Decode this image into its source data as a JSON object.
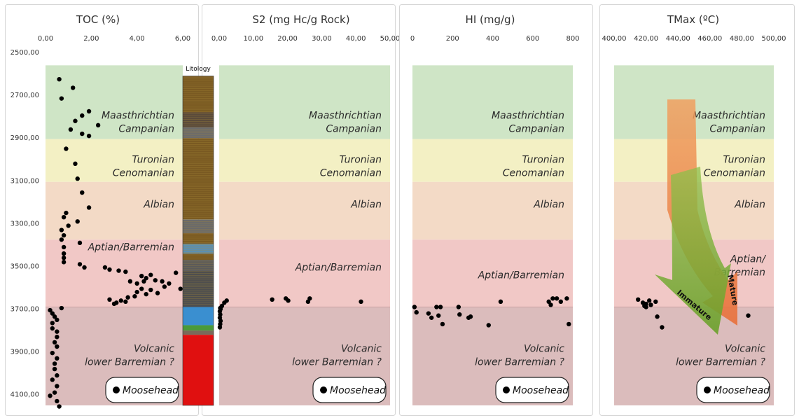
{
  "chart_data": {
    "type": "scatter",
    "depth_axis": {
      "range": [
        2500,
        4150
      ],
      "inverted": true,
      "ticks": [
        2500,
        2700,
        2900,
        3100,
        3300,
        3500,
        3700,
        3900,
        4100
      ],
      "tick_labels": [
        "2500,00",
        "2700,00",
        "2900,00",
        "3100,00",
        "3300,00",
        "3500,00",
        "3700,00",
        "3900,00",
        "4100,00"
      ]
    },
    "zones": [
      {
        "name_lines": [
          "Maasthrichtian",
          "Campanian"
        ],
        "top": 2560,
        "base": 2905,
        "color": "#cfe5c6"
      },
      {
        "name_lines": [
          "Turonian",
          "Cenomanian"
        ],
        "top": 2905,
        "base": 3105,
        "color": "#f3f0c4"
      },
      {
        "name_lines": [
          "Albian"
        ],
        "top": 3105,
        "base": 3375,
        "color": "#f3dac6"
      },
      {
        "name_lines": [
          "Aptian/Barremian"
        ],
        "top": 3375,
        "base": 3690,
        "color": "#f1c8c6"
      },
      {
        "name_lines": [
          "Volcanic",
          "lower Barremian ?"
        ],
        "top": 3690,
        "base": 4150,
        "color": "#dbbcbc"
      }
    ],
    "legend": "Moosehead",
    "lithology_label": "Litology",
    "arrow_labels": {
      "immature": "Immature",
      "mature": "Mature"
    },
    "panels": [
      {
        "title": "TOC (%)",
        "x_range": [
          0,
          6
        ],
        "x_ticks": [
          0,
          2,
          4,
          6
        ],
        "x_tick_labels": [
          "0,00",
          "2,00",
          "4,00",
          "6,00"
        ],
        "zone_label_lines": [
          [
            "Maasthrichtian",
            "Campanian"
          ],
          [
            "Turonian",
            "Cenomanian"
          ],
          [
            "Albian"
          ],
          [
            "Aptian/Barremian"
          ],
          [
            "Volcanic",
            "lower Barremian ?"
          ]
        ],
        "label_depths": [
          2810,
          3015,
          3225,
          3425,
          3900
        ],
        "points": [
          [
            0.6,
            2625
          ],
          [
            1.2,
            2665
          ],
          [
            0.7,
            2715
          ],
          [
            1.9,
            2775
          ],
          [
            1.6,
            2795
          ],
          [
            1.3,
            2820
          ],
          [
            2.3,
            2840
          ],
          [
            1.1,
            2860
          ],
          [
            1.6,
            2880
          ],
          [
            1.9,
            2890
          ],
          [
            0.9,
            2950
          ],
          [
            1.3,
            3020
          ],
          [
            1.4,
            3090
          ],
          [
            1.6,
            3155
          ],
          [
            1.9,
            3225
          ],
          [
            0.9,
            3250
          ],
          [
            0.8,
            3270
          ],
          [
            1.4,
            3290
          ],
          [
            1.0,
            3310
          ],
          [
            0.7,
            3330
          ],
          [
            0.8,
            3355
          ],
          [
            0.7,
            3375
          ],
          [
            1.5,
            3390
          ],
          [
            0.8,
            3410
          ],
          [
            0.8,
            3440
          ],
          [
            0.8,
            3460
          ],
          [
            0.8,
            3480
          ],
          [
            1.5,
            3490
          ],
          [
            1.7,
            3505
          ],
          [
            2.6,
            3505
          ],
          [
            2.8,
            3515
          ],
          [
            3.2,
            3520
          ],
          [
            3.5,
            3525
          ],
          [
            4.6,
            3540
          ],
          [
            5.7,
            3530
          ],
          [
            4.2,
            3545
          ],
          [
            4.4,
            3555
          ],
          [
            4.3,
            3570
          ],
          [
            4.8,
            3565
          ],
          [
            5.1,
            3570
          ],
          [
            3.7,
            3570
          ],
          [
            4.0,
            3580
          ],
          [
            5.4,
            3580
          ],
          [
            5.2,
            3595
          ],
          [
            4.2,
            3605
          ],
          [
            4.6,
            3610
          ],
          [
            5.9,
            3605
          ],
          [
            4.0,
            3620
          ],
          [
            4.4,
            3630
          ],
          [
            4.9,
            3625
          ],
          [
            3.9,
            3640
          ],
          [
            3.6,
            3645
          ],
          [
            2.8,
            3655
          ],
          [
            3.3,
            3660
          ],
          [
            3.5,
            3665
          ],
          [
            3.1,
            3670
          ],
          [
            3.0,
            3675
          ],
          [
            0.7,
            3695
          ],
          [
            0.2,
            3705
          ],
          [
            0.3,
            3720
          ],
          [
            0.4,
            3735
          ],
          [
            0.5,
            3750
          ],
          [
            0.3,
            3765
          ],
          [
            0.3,
            3790
          ],
          [
            0.5,
            3805
          ],
          [
            0.5,
            3830
          ],
          [
            0.4,
            3855
          ],
          [
            0.5,
            3875
          ],
          [
            0.3,
            3905
          ],
          [
            0.5,
            3930
          ],
          [
            0.4,
            3955
          ],
          [
            0.4,
            3980
          ],
          [
            0.5,
            4010
          ],
          [
            0.3,
            4030
          ],
          [
            0.5,
            4060
          ],
          [
            0.4,
            4090
          ],
          [
            0.2,
            4105
          ],
          [
            0.5,
            4130
          ],
          [
            0.6,
            4155
          ]
        ]
      },
      {
        "title": "S2 (mg Hc/g Rock)",
        "x_range": [
          0,
          50
        ],
        "x_ticks": [
          0,
          10,
          20,
          30,
          40,
          50
        ],
        "x_tick_labels": [
          "0,00",
          "10,00",
          "20,00",
          "30,00",
          "40,00",
          "50,00"
        ],
        "zone_label_lines": [
          [
            "Maasthrichtian",
            "Campanian"
          ],
          [
            "Turonian",
            "Cenomanian"
          ],
          [
            "Albian"
          ],
          [
            "Aptian/Barremian"
          ],
          [
            "Volcanic",
            "lower Barremian ?"
          ]
        ],
        "label_depths": [
          2810,
          3015,
          3225,
          3520,
          3900
        ],
        "points": [
          [
            2.2,
            3660
          ],
          [
            1.5,
            3670
          ],
          [
            0.8,
            3685
          ],
          [
            0.3,
            3695
          ],
          [
            0.2,
            3710
          ],
          [
            0.3,
            3725
          ],
          [
            0.2,
            3740
          ],
          [
            0.4,
            3755
          ],
          [
            0.3,
            3770
          ],
          [
            0.2,
            3785
          ],
          [
            0.4,
            3700
          ],
          [
            15.5,
            3655
          ],
          [
            19.5,
            3650
          ],
          [
            20.2,
            3660
          ],
          [
            26.5,
            3650
          ],
          [
            26.0,
            3665
          ],
          [
            41.5,
            3665
          ]
        ]
      },
      {
        "title": "HI (mg/g)",
        "x_range": [
          0,
          800
        ],
        "x_ticks": [
          0,
          200,
          400,
          600,
          800
        ],
        "x_tick_labels": [
          "0",
          "200",
          "400",
          "600",
          "800"
        ],
        "zone_label_lines": [
          [
            "Maasthrichtian",
            "Campanian"
          ],
          [
            "Turonian",
            "Cenomanian"
          ],
          [
            "Albian"
          ],
          [
            "Aptian/Barremian"
          ],
          [
            "Volcanic",
            "lower Barremian ?"
          ]
        ],
        "label_depths": [
          2810,
          3015,
          3225,
          3555,
          3900
        ],
        "points": [
          [
            10,
            3690
          ],
          [
            20,
            3715
          ],
          [
            80,
            3720
          ],
          [
            95,
            3740
          ],
          [
            120,
            3690
          ],
          [
            140,
            3690
          ],
          [
            130,
            3730
          ],
          [
            150,
            3770
          ],
          [
            230,
            3690
          ],
          [
            235,
            3725
          ],
          [
            280,
            3740
          ],
          [
            290,
            3735
          ],
          [
            380,
            3775
          ],
          [
            440,
            3665
          ],
          [
            680,
            3665
          ],
          [
            700,
            3650
          ],
          [
            720,
            3650
          ],
          [
            690,
            3680
          ],
          [
            740,
            3665
          ],
          [
            770,
            3650
          ],
          [
            780,
            3770
          ]
        ]
      },
      {
        "title": "TMax (ºC)",
        "x_range": [
          400,
          500
        ],
        "x_ticks": [
          400,
          420,
          440,
          460,
          480,
          500
        ],
        "x_tick_labels": [
          "400,00",
          "420,00",
          "440,00",
          "460,00",
          "480,00",
          "500,00"
        ],
        "zone_label_lines": [
          [
            "Maasthrichtian",
            "Campanian"
          ],
          [
            "Turonian",
            "Cenomanian"
          ],
          [
            "Albian"
          ],
          [
            "Aptian/",
            "Barremian"
          ],
          [
            "Volcanic",
            "lower Barremian ?"
          ]
        ],
        "label_depths": [
          2810,
          3015,
          3225,
          3480,
          3900
        ],
        "points": [
          [
            415,
            3655
          ],
          [
            418,
            3670
          ],
          [
            420,
            3675
          ],
          [
            422,
            3660
          ],
          [
            419,
            3685
          ],
          [
            420,
            3690
          ],
          [
            423,
            3680
          ],
          [
            426,
            3665
          ],
          [
            427,
            3735
          ],
          [
            430,
            3785
          ],
          [
            484,
            3730
          ]
        ]
      }
    ]
  }
}
